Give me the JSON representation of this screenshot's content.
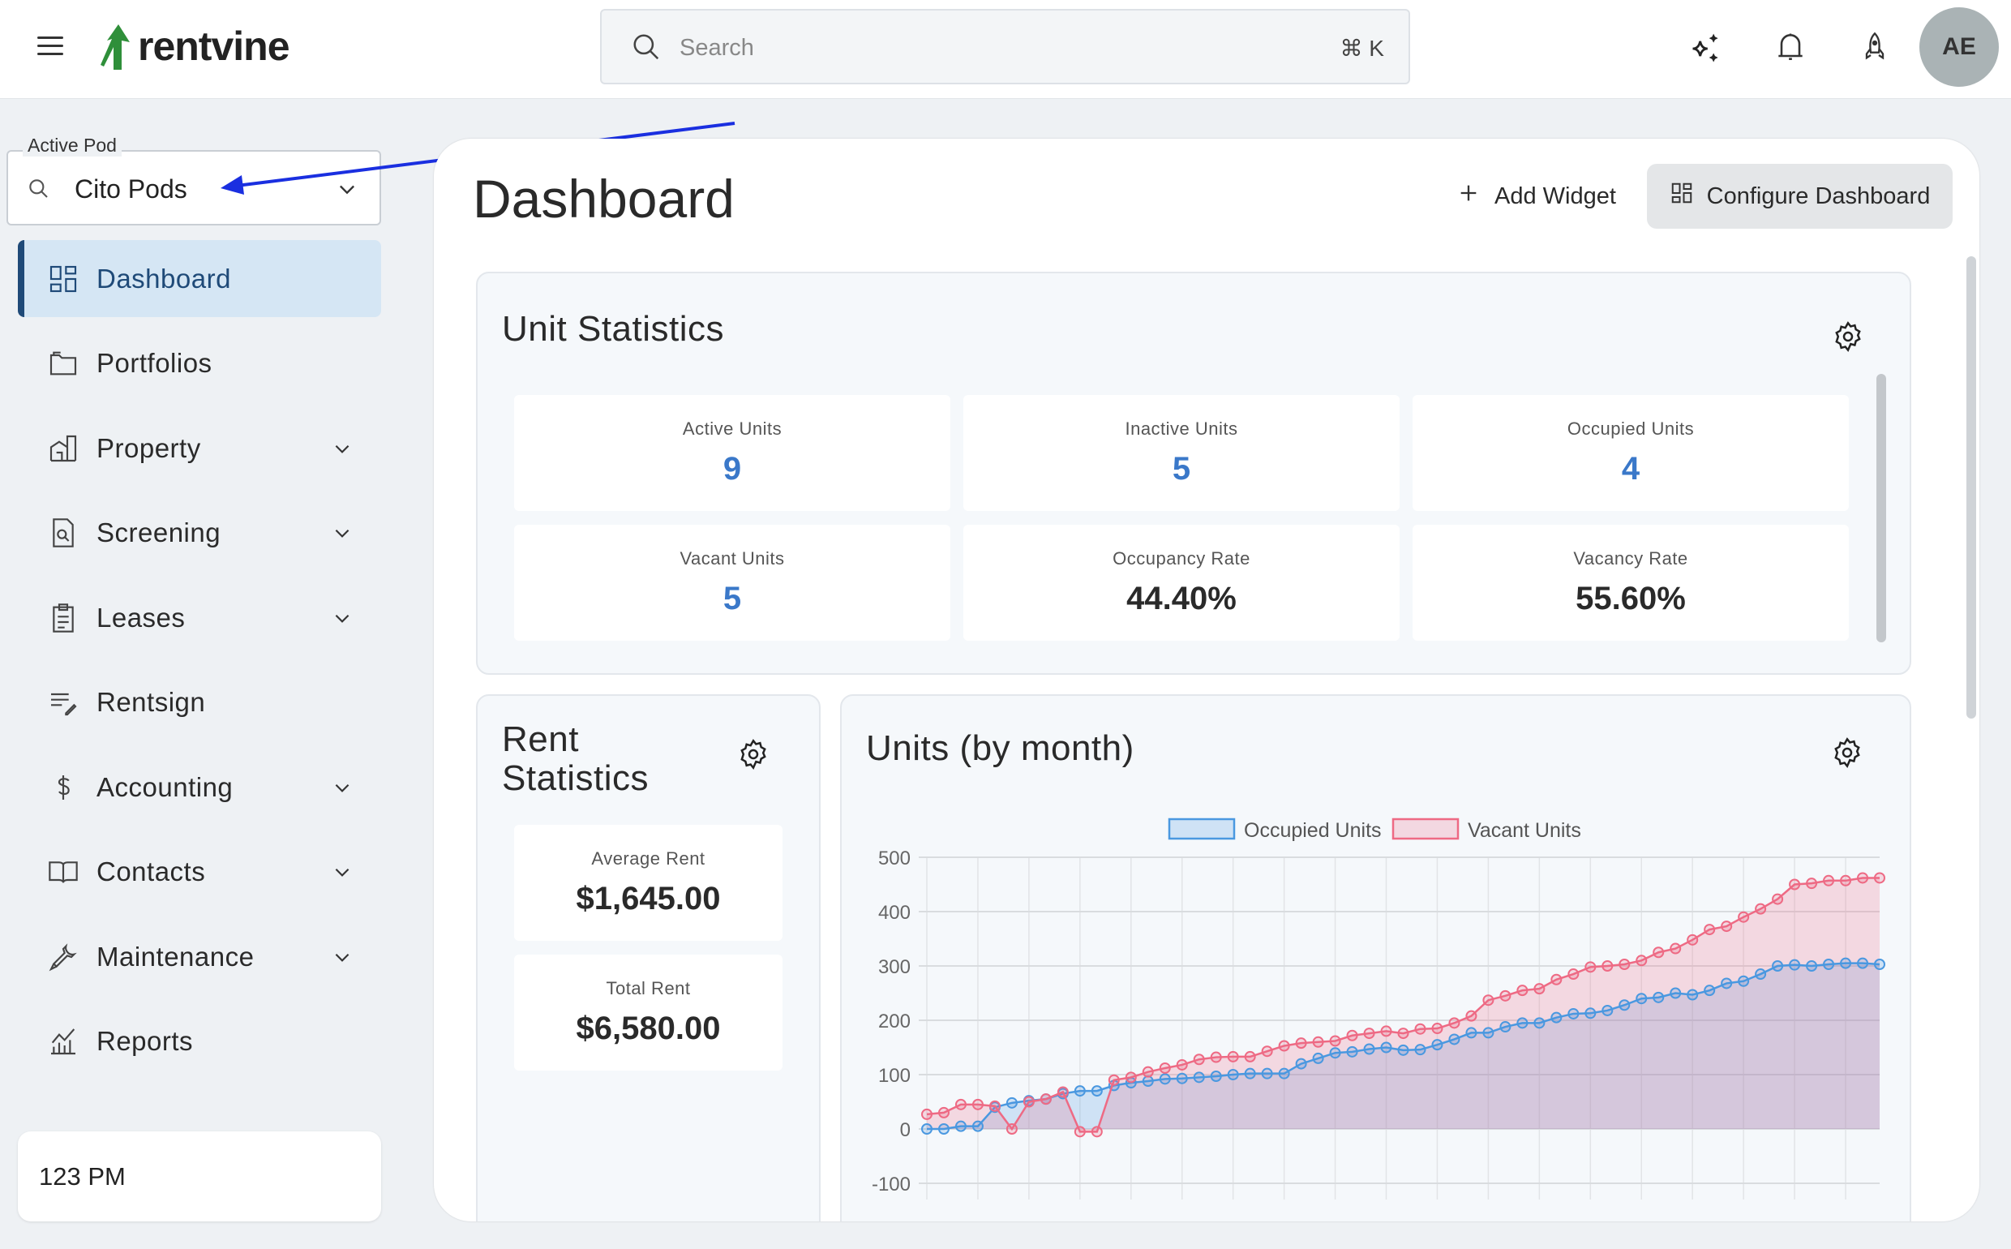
{
  "header": {
    "brand": "rentvine",
    "search_placeholder": "Search",
    "search_shortcut": "⌘ K",
    "avatar_initials": "AE",
    "icons": [
      "menu-icon",
      "sparkles-icon",
      "bell-icon",
      "rocket-icon"
    ]
  },
  "sidebar": {
    "active_pod_label": "Active Pod",
    "active_pod_value": "Cito Pods",
    "items": [
      {
        "label": "Dashboard",
        "icon": "dashboard-icon",
        "active": true,
        "expandable": false
      },
      {
        "label": "Portfolios",
        "icon": "folder-icon",
        "expandable": false
      },
      {
        "label": "Property",
        "icon": "building-icon",
        "expandable": true
      },
      {
        "label": "Screening",
        "icon": "screening-icon",
        "expandable": true
      },
      {
        "label": "Leases",
        "icon": "clipboard-icon",
        "expandable": true
      },
      {
        "label": "Rentsign",
        "icon": "sign-icon",
        "expandable": false
      },
      {
        "label": "Accounting",
        "icon": "dollar-icon",
        "expandable": true
      },
      {
        "label": "Contacts",
        "icon": "book-icon",
        "expandable": true
      },
      {
        "label": "Maintenance",
        "icon": "wrench-icon",
        "expandable": true
      },
      {
        "label": "Reports",
        "icon": "chart-icon",
        "expandable": false
      }
    ],
    "footer_text": "123 PM"
  },
  "main": {
    "title": "Dashboard",
    "add_widget": "Add Widget",
    "configure": "Configure Dashboard",
    "unit_statistics": {
      "title": "Unit Statistics",
      "stats": [
        {
          "label": "Active Units",
          "value": "9"
        },
        {
          "label": "Inactive Units",
          "value": "5"
        },
        {
          "label": "Occupied Units",
          "value": "4"
        },
        {
          "label": "Vacant Units",
          "value": "5"
        },
        {
          "label": "Occupancy Rate",
          "value": "44.40%"
        },
        {
          "label": "Vacancy Rate",
          "value": "55.60%"
        }
      ]
    },
    "rent_statistics": {
      "title_line1": "Rent",
      "title_line2": "Statistics",
      "stats": [
        {
          "label": "Average Rent",
          "value": "$1,645.00"
        },
        {
          "label": "Total Rent",
          "value": "$6,580.00"
        }
      ]
    },
    "units_chart_title": "Units (by month)"
  },
  "colors": {
    "accent": "#1f4a78",
    "stat_blue": "#3a78c9",
    "occupied": "#4a98e0",
    "vacant": "#ee6a84",
    "annotation_arrow": "#1a2fe0"
  },
  "chart_data": {
    "type": "area",
    "title": "Units (by month)",
    "ylim": [
      -100,
      500
    ],
    "yticks": [
      "500",
      "400",
      "300",
      "200",
      "100",
      "0",
      "-100"
    ],
    "grid": true,
    "legend": "top",
    "series": [
      {
        "name": "Occupied Units",
        "values": [
          0,
          0,
          5,
          5,
          40,
          48,
          52,
          55,
          65,
          70,
          70,
          80,
          85,
          88,
          92,
          93,
          95,
          97,
          100,
          102,
          102,
          102,
          120,
          130,
          140,
          142,
          147,
          150,
          145,
          146,
          155,
          165,
          177,
          177,
          188,
          195,
          195,
          205,
          212,
          213,
          218,
          228,
          240,
          242,
          250,
          247,
          255,
          268,
          272,
          285,
          300,
          302,
          300,
          303,
          305,
          305,
          303
        ]
      },
      {
        "name": "Vacant Units",
        "values": [
          27,
          30,
          45,
          45,
          42,
          0,
          50,
          55,
          68,
          -5,
          -5,
          90,
          95,
          105,
          112,
          118,
          128,
          132,
          133,
          133,
          143,
          153,
          158,
          160,
          162,
          172,
          176,
          180,
          176,
          184,
          185,
          195,
          208,
          237,
          245,
          255,
          258,
          275,
          285,
          298,
          300,
          303,
          310,
          325,
          332,
          348,
          367,
          373,
          390,
          405,
          423,
          450,
          452,
          457,
          457,
          462,
          462
        ]
      }
    ]
  }
}
